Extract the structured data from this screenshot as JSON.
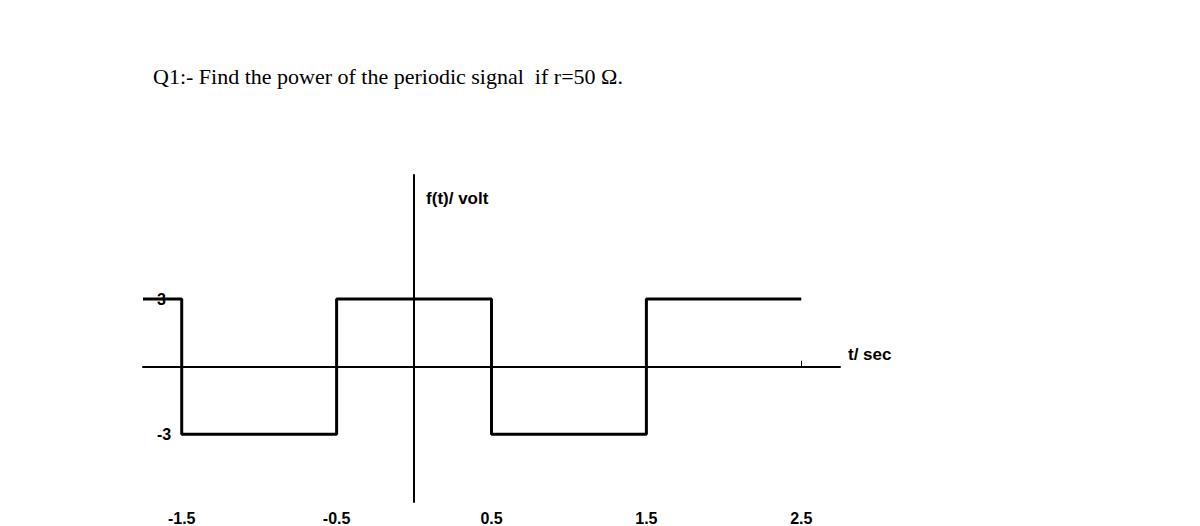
{
  "chart_data": {
    "type": "line",
    "title": "Q1:- Find the power of the periodic signal  if r=50 Ω.",
    "x_label": "t/ sec",
    "y_label": "f(t)/ volt",
    "x": [
      -1.75,
      -1.5,
      -1.5,
      -0.5,
      -0.5,
      0.5,
      0.5,
      1.5,
      1.5,
      2.5
    ],
    "values": [
      3,
      3,
      -3,
      -3,
      3,
      3,
      -3,
      -3,
      3,
      3
    ],
    "color": "#000000",
    "xlim": [
      -1.75,
      2.75
    ],
    "xticks": [
      -1.5,
      -0.5,
      0.5,
      1.5,
      2.5
    ],
    "ylim": [
      -6,
      8.5
    ],
    "yticks": [
      -3,
      3
    ],
    "grid": false
  }
}
